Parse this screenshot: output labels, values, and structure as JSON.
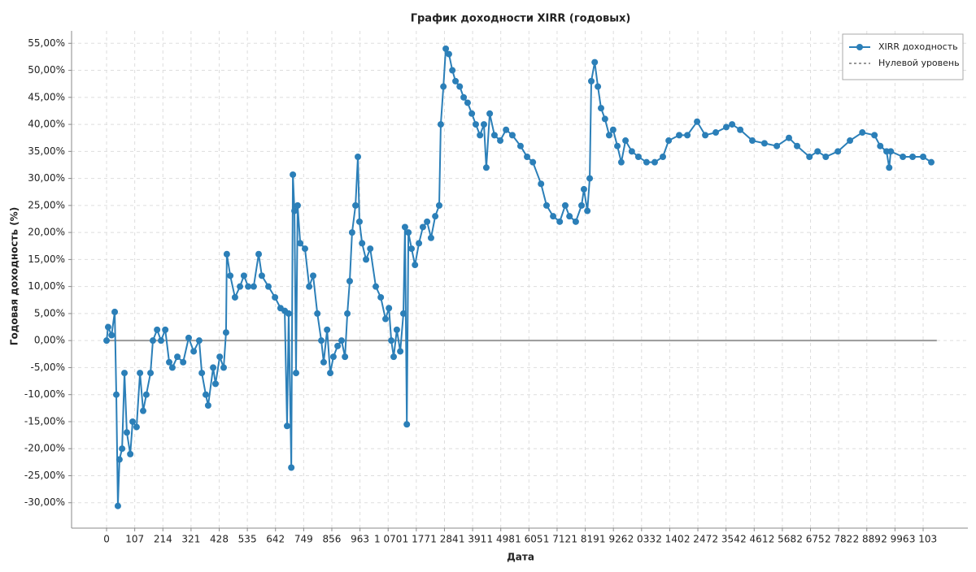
{
  "chart_data": {
    "type": "line",
    "title": "График доходности XIRR (годовых)",
    "xlabel": "Дата",
    "ylabel": "Годовая доходность (%)",
    "xlim": [
      -133,
      3273
    ],
    "ylim": [
      -34.7,
      57.3
    ],
    "grid": true,
    "legend": "upper right",
    "xticks": [
      0,
      107,
      214,
      321,
      428,
      535,
      642,
      749,
      856,
      963,
      {
        "value": 1070,
        "label": "1 070"
      },
      {
        "value": 1177,
        "label": "1 177"
      },
      {
        "value": 1284,
        "label": "1 284"
      },
      {
        "value": 1391,
        "label": "1 391"
      },
      {
        "value": 1498,
        "label": "1 498"
      },
      {
        "value": 1605,
        "label": "1 605"
      },
      {
        "value": 1712,
        "label": "1 712"
      },
      {
        "value": 1819,
        "label": "1 819"
      },
      {
        "value": 1926,
        "label": "1 926"
      },
      {
        "value": 2033,
        "label": "2 033"
      },
      {
        "value": 2140,
        "label": "2 140"
      },
      {
        "value": 2247,
        "label": "2 247"
      },
      {
        "value": 2354,
        "label": "2 354"
      },
      {
        "value": 2461,
        "label": "2 461"
      },
      {
        "value": 2568,
        "label": "2 568"
      },
      {
        "value": 2675,
        "label": "2 675"
      },
      {
        "value": 2782,
        "label": "2 782"
      },
      {
        "value": 2889,
        "label": "2 889"
      },
      {
        "value": 2996,
        "label": "2 996"
      },
      {
        "value": 3103,
        "label": "3 103"
      }
    ],
    "yticks": [
      {
        "value": -30,
        "label": "-30,00%"
      },
      {
        "value": -25,
        "label": "-25,00%"
      },
      {
        "value": -20,
        "label": "-20,00%"
      },
      {
        "value": -15,
        "label": "-15,00%"
      },
      {
        "value": -10,
        "label": "-10,00%"
      },
      {
        "value": -5,
        "label": "-5,00%"
      },
      {
        "value": 0,
        "label": "0,00%"
      },
      {
        "value": 5,
        "label": "5,00%"
      },
      {
        "value": 10,
        "label": "10,00%"
      },
      {
        "value": 15,
        "label": "15,00%"
      },
      {
        "value": 20,
        "label": "20,00%"
      },
      {
        "value": 25,
        "label": "25,00%"
      },
      {
        "value": 30,
        "label": "30,00%"
      },
      {
        "value": 35,
        "label": "35,00%"
      },
      {
        "value": 40,
        "label": "40,00%"
      },
      {
        "value": 45,
        "label": "45,00%"
      },
      {
        "value": 50,
        "label": "50,00%"
      },
      {
        "value": 55,
        "label": "55,00%"
      }
    ],
    "series": [
      {
        "name": "XIRR доходность",
        "color": "#2b7fb8",
        "marker": true,
        "style": "solid",
        "x": [
          0,
          6,
          19,
          31,
          37,
          43,
          49,
          59,
          68,
          77,
          90,
          99,
          114,
          127,
          139,
          151,
          167,
          176,
          192,
          207,
          223,
          238,
          250,
          269,
          291,
          312,
          331,
          352,
          362,
          377,
          386,
          405,
          414,
          430,
          445,
          454,
          457,
          470,
          488,
          507,
          522,
          538,
          559,
          578,
          590,
          615,
          640,
          661,
          677,
          686,
          692,
          702,
          708,
          714,
          720,
          726,
          736,
          754,
          770,
          785,
          801,
          816,
          825,
          838,
          850,
          862,
          878,
          893,
          906,
          915,
          924,
          933,
          946,
          955,
          961,
          971,
          986,
          1002,
          1023,
          1042,
          1060,
          1073,
          1082,
          1091,
          1103,
          1116,
          1128,
          1134,
          1141,
          1147,
          1159,
          1172,
          1187,
          1202,
          1218,
          1233,
          1249,
          1264,
          1270,
          1280,
          1289,
          1301,
          1314,
          1326,
          1342,
          1357,
          1372,
          1388,
          1403,
          1419,
          1434,
          1443,
          1456,
          1474,
          1496,
          1518,
          1542,
          1573,
          1598,
          1620,
          1651,
          1672,
          1697,
          1722,
          1743,
          1759,
          1783,
          1805,
          1814,
          1827,
          1836,
          1842,
          1855,
          1867,
          1879,
          1894,
          1910,
          1925,
          1941,
          1956,
          1972,
          1996,
          2021,
          2052,
          2083,
          2114,
          2136,
          2176,
          2207,
          2244,
          2275,
          2315,
          2355,
          2377,
          2408,
          2454,
          2500,
          2547,
          2593,
          2624,
          2671,
          2702,
          2733,
          2779,
          2825,
          2872,
          2918,
          2940,
          2964,
          2974,
          2980,
          3026,
          3063,
          3103,
          3134
        ],
        "values": [
          0,
          2.5,
          1,
          5.3,
          -10,
          -30.6,
          -22,
          -20,
          -6,
          -17,
          -21,
          -15,
          -16,
          -6,
          -13,
          -10,
          -6,
          0,
          2,
          0,
          2,
          -4,
          -5,
          -3,
          -4,
          0.5,
          -2,
          0,
          -6,
          -10,
          -12,
          -5,
          -8,
          -3,
          -5,
          1.5,
          16,
          12,
          8,
          10,
          12,
          10,
          10,
          16,
          12,
          10,
          8,
          6,
          5.5,
          -15.8,
          5,
          -23.5,
          30.7,
          24,
          -6,
          25,
          18,
          17,
          10,
          12,
          5,
          0,
          -4,
          2,
          -6,
          -3,
          -1,
          0,
          -3,
          5,
          11,
          20,
          25,
          34,
          22,
          18,
          15,
          17,
          10,
          8,
          4,
          6,
          0,
          -3,
          2,
          -2,
          5,
          21,
          -15.5,
          20,
          17,
          14,
          18,
          21,
          22,
          19,
          23,
          25,
          40,
          47,
          54,
          53,
          50,
          48,
          47,
          45,
          44,
          42,
          40,
          38,
          40,
          32,
          42,
          38,
          37,
          39,
          38,
          36,
          34,
          33,
          29,
          25,
          23,
          22,
          25,
          23,
          22,
          25,
          28,
          24,
          30,
          48,
          51.5,
          47,
          43,
          41,
          38,
          39,
          36,
          33,
          37,
          35,
          34,
          33,
          33,
          34,
          37,
          38,
          38,
          40.5,
          38,
          38.5,
          39.5,
          40,
          39,
          37,
          36.5,
          36,
          37.5,
          36,
          34,
          35,
          34,
          35,
          37,
          38.5,
          38,
          36,
          35,
          32,
          35,
          34,
          34,
          34,
          33
        ]
      },
      {
        "name": "Нулевой уровень",
        "color": "#999999",
        "marker": false,
        "style": "dotted",
        "x": [
          0,
          3155
        ],
        "values": [
          0,
          0
        ]
      }
    ]
  }
}
